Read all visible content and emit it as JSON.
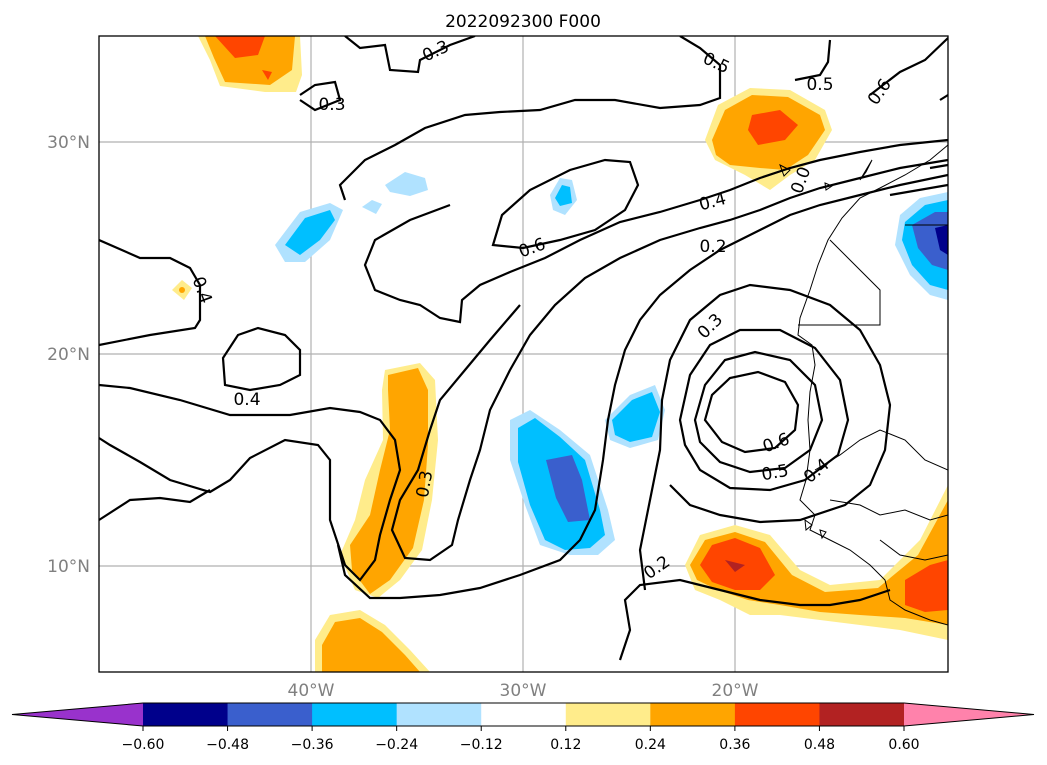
{
  "title": "2022092300 F000",
  "latitude_labels": [
    "30°N",
    "20°N",
    "10°N"
  ],
  "longitude_labels": [
    "40°W",
    "30°W",
    "20°W"
  ],
  "colorbar": {
    "ticks": [
      "−0.60",
      "−0.48",
      "−0.36",
      "−0.24",
      "−0.12",
      "0.12",
      "0.24",
      "0.36",
      "0.48",
      "0.60"
    ],
    "colors": [
      "#9932cc",
      "#00008b",
      "#3a5fcd",
      "#00bfff",
      "#b0e2ff",
      "#ffffff",
      "#ffec8b",
      "#ffa500",
      "#ff4500",
      "#b22222",
      "#ff82ab"
    ]
  },
  "contour_labels": [
    "0.3",
    "0.3",
    "0.5",
    "0.5",
    "0.6",
    "0.4",
    "0.6",
    "0.4",
    "0.2",
    "0.3",
    "0.4",
    "0.3",
    "0.6",
    "0.5",
    "0.4",
    "0.2",
    "0.0"
  ]
}
